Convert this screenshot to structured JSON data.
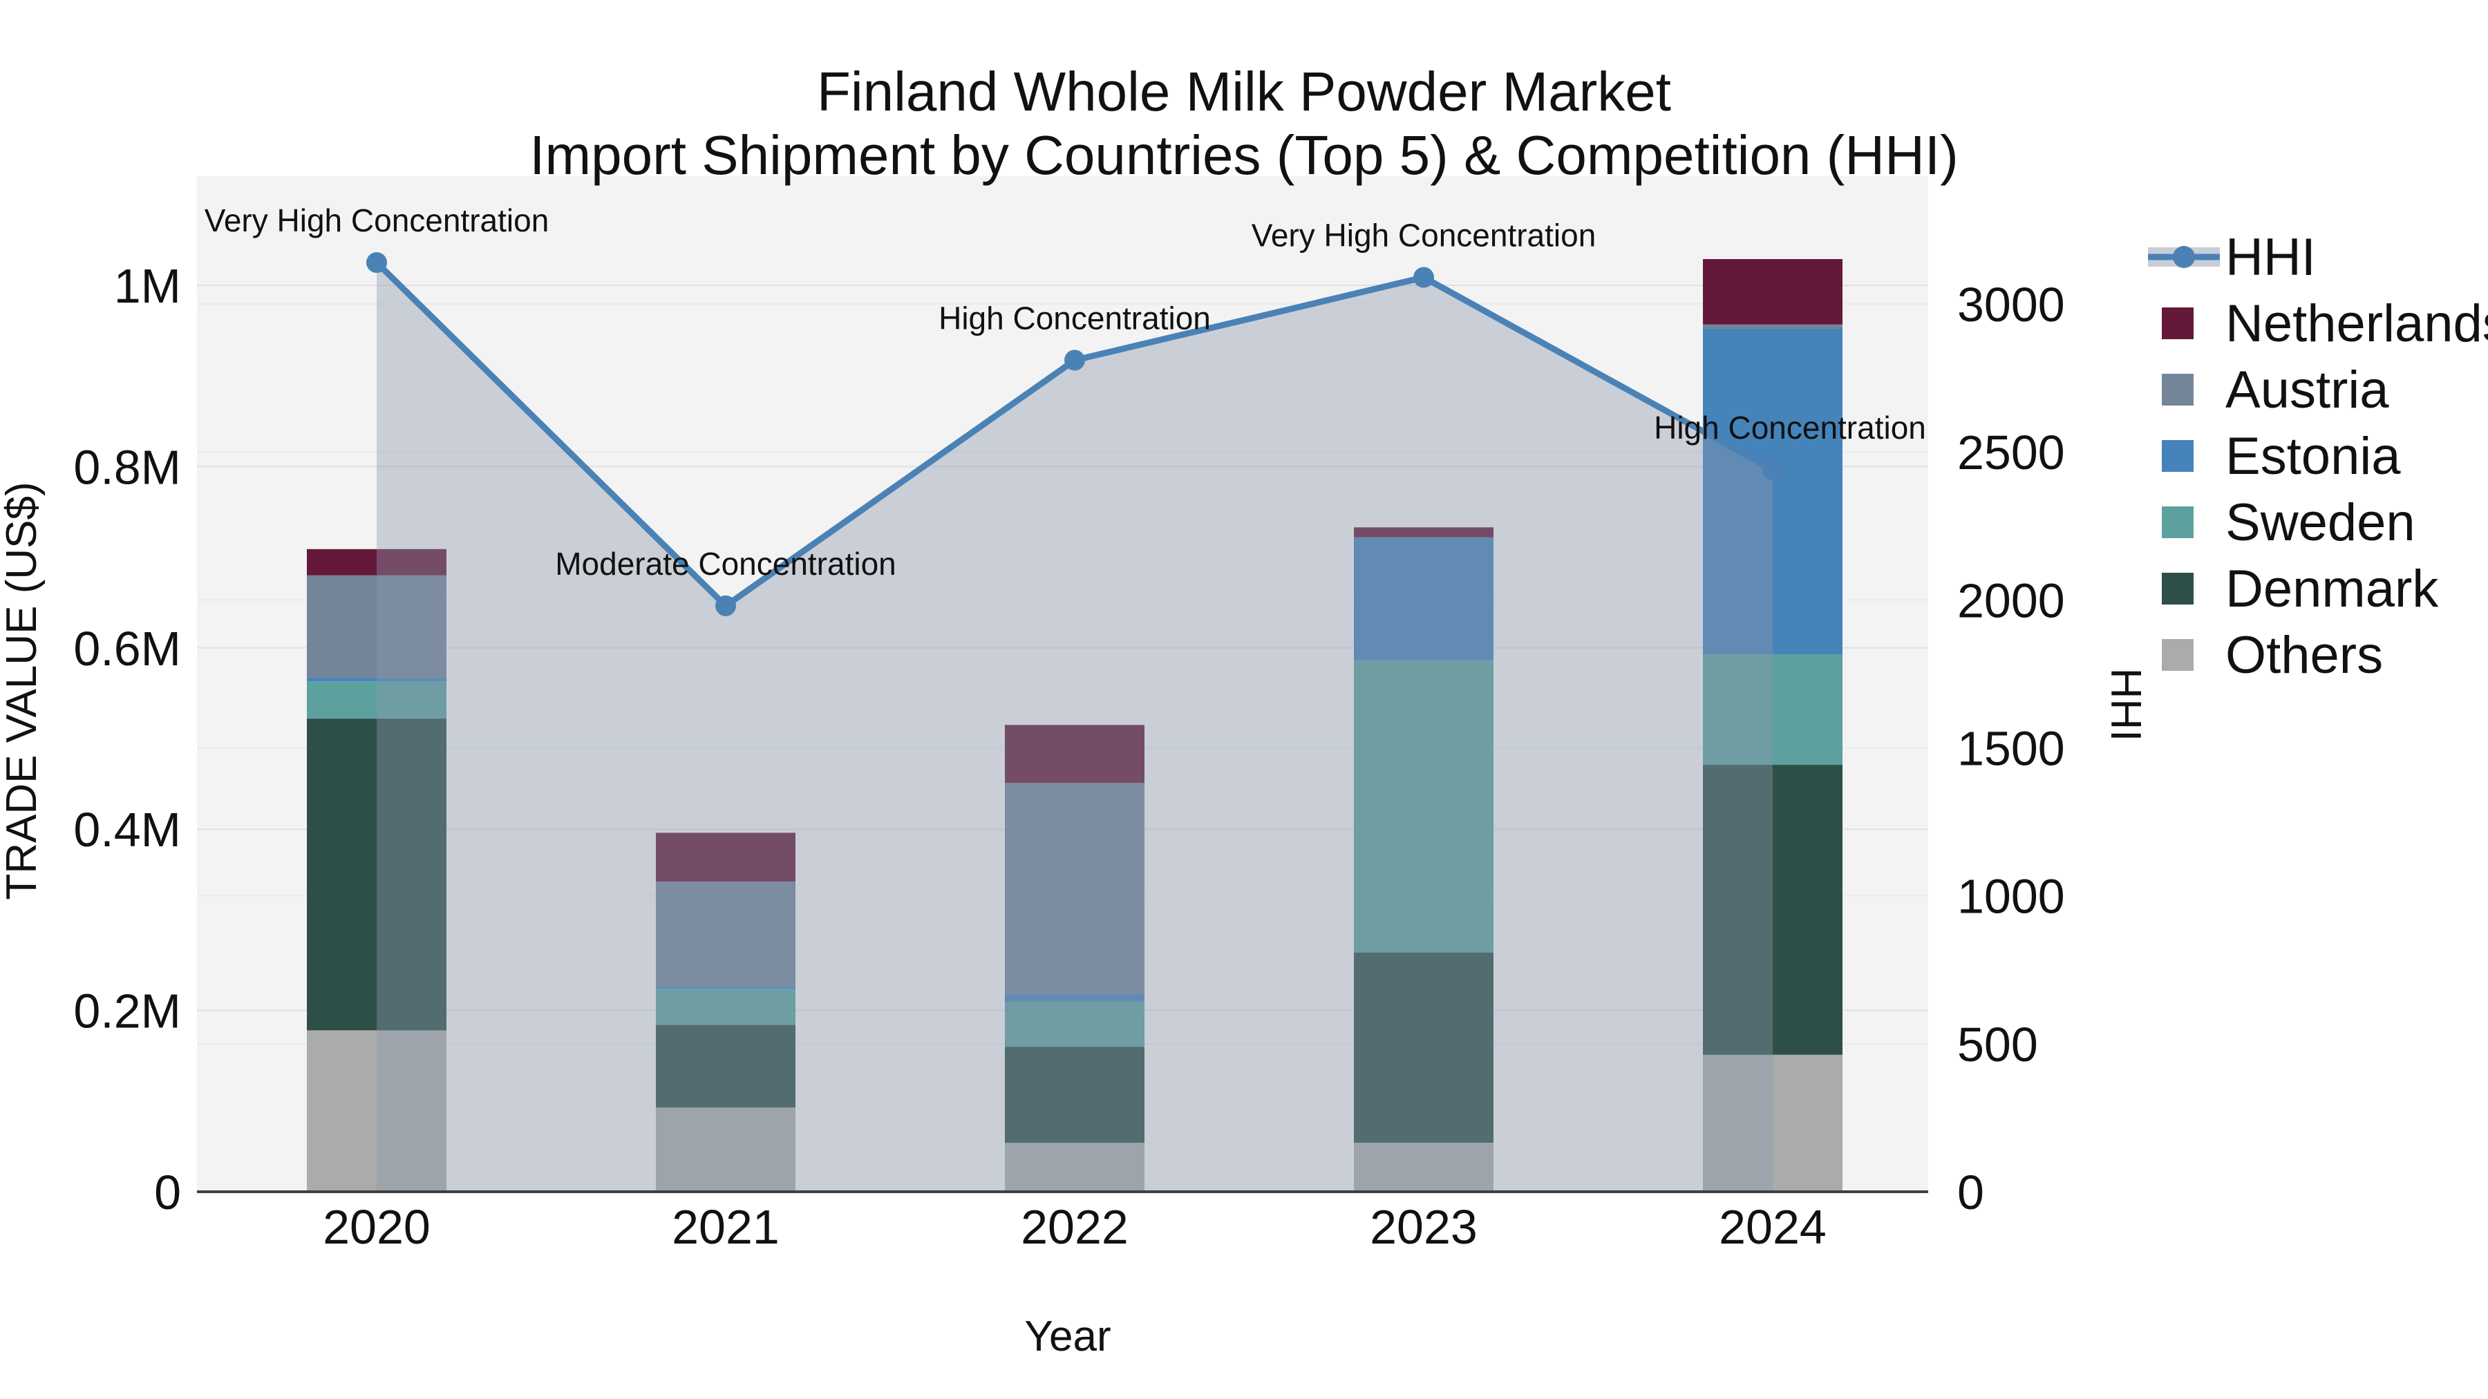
{
  "title": {
    "line1": "Finland Whole Milk Powder Market",
    "line2": "Import Shipment by Countries (Top 5) & Competition (HHI)"
  },
  "axes": {
    "x": {
      "title": "Year",
      "ticks": [
        "2020",
        "2021",
        "2022",
        "2023",
        "2024"
      ]
    },
    "y_left": {
      "title": "TRADE VALUE (US$)",
      "ticks": [
        "0",
        "0.2M",
        "0.4M",
        "0.6M",
        "0.8M",
        "1M"
      ],
      "tick_values_millions": [
        0,
        0.2,
        0.4,
        0.6,
        0.8,
        1.0
      ],
      "range_millions": [
        0,
        1.12
      ]
    },
    "y_right": {
      "title": "HHI",
      "ticks": [
        "0",
        "500",
        "1000",
        "1500",
        "2000",
        "2500",
        "3000"
      ],
      "tick_values": [
        0,
        500,
        1000,
        1500,
        2000,
        2500,
        3000
      ],
      "range": [
        0,
        3000
      ]
    }
  },
  "legend": [
    {
      "label": "HHI",
      "type": "line",
      "color": "#4a82b6"
    },
    {
      "label": "Netherlands",
      "type": "swatch",
      "color": "#65193a"
    },
    {
      "label": "Austria",
      "type": "swatch",
      "color": "#74859a"
    },
    {
      "label": "Estonia",
      "type": "swatch",
      "color": "#4583bb"
    },
    {
      "label": "Sweden",
      "type": "swatch",
      "color": "#5da19e"
    },
    {
      "label": "Denmark",
      "type": "swatch",
      "color": "#2e4f47"
    },
    {
      "label": "Others",
      "type": "swatch",
      "color": "#a9acab"
    }
  ],
  "colors": {
    "hhi_line": "#4a82b6",
    "area_fill": "#8b99ad",
    "plot_bg": "#f3f3f4",
    "grid_left": "#dfe1e4",
    "grid_right": "#e8eaec",
    "axis_line": "#3f3f3f",
    "annotation_text": "#1a1a1a"
  },
  "chart_data": {
    "type": "bar+line",
    "categories": [
      "2020",
      "2021",
      "2022",
      "2023",
      "2024"
    ],
    "bar_units": "million US$",
    "stack_order_bottom_to_top": [
      "Others",
      "Denmark",
      "Sweden",
      "Estonia",
      "Austria",
      "Netherlands"
    ],
    "series": [
      {
        "name": "Others",
        "values": [
          0.178,
          0.093,
          0.054,
          0.054,
          0.151
        ]
      },
      {
        "name": "Denmark",
        "values": [
          0.344,
          0.091,
          0.106,
          0.21,
          0.32
        ]
      },
      {
        "name": "Sweden",
        "values": [
          0.041,
          0.04,
          0.05,
          0.322,
          0.122
        ]
      },
      {
        "name": "Estonia",
        "values": [
          0.004,
          0.003,
          0.008,
          0.136,
          0.359
        ]
      },
      {
        "name": "Austria",
        "values": [
          0.113,
          0.115,
          0.233,
          0.0,
          0.005
        ]
      },
      {
        "name": "Netherlands",
        "values": [
          0.029,
          0.054,
          0.064,
          0.011,
          0.072
        ]
      }
    ],
    "bar_totals_millions": [
      0.709,
      0.396,
      0.515,
      0.733,
      1.029
    ],
    "hhi": {
      "name": "HHI",
      "values": [
        3140,
        1980,
        2810,
        3090,
        2440
      ]
    },
    "annotations": [
      "Very High Concentration",
      "Moderate Concentration",
      "High Concentration",
      "Very High Concentration",
      "High Concentration"
    ],
    "title": "Finland Whole Milk Powder Market — Import Shipment by Countries (Top 5) & Competition (HHI)",
    "xlabel": "Year",
    "ylabel_left": "TRADE VALUE (US$)",
    "ylabel_right": "HHI",
    "legend_position": "right",
    "grid": true
  }
}
